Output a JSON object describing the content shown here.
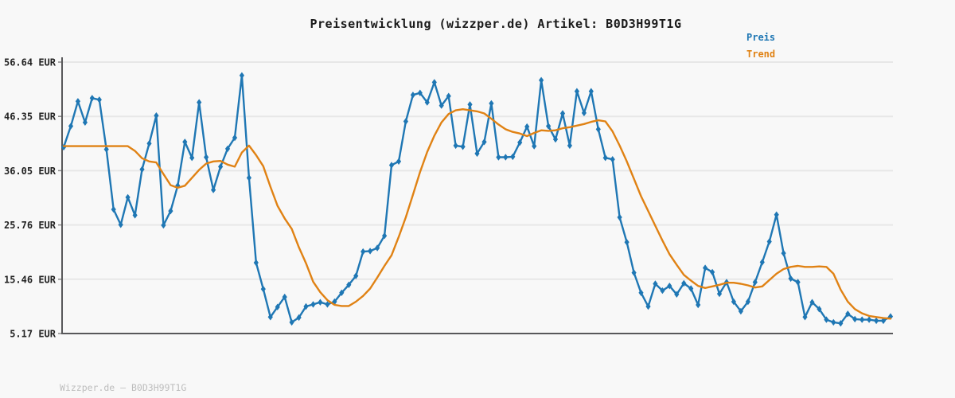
{
  "title": "Preisentwicklung (wizzper.de) Artikel: B0D3H99T1G",
  "footer": "Wizzper.de — B0D3H99T1G",
  "legend": {
    "preis": "Preis",
    "trend": "Trend"
  },
  "colors": {
    "price": "#1f77b4",
    "trend": "#e08214",
    "grid": "#e7e7e7",
    "axis": "#58585a",
    "tick": "#8a8a8a",
    "background": "#f8f8f8",
    "title_text": "#1a1a1a",
    "footer_text": "#bdbdbd"
  },
  "chart_data": {
    "type": "line",
    "title": "Preisentwicklung (wizzper.de) Artikel: B0D3H99T1G",
    "xlabel": "",
    "ylabel": "",
    "grid": true,
    "legend_position": "top-right",
    "y_axis": {
      "unit": "EUR",
      "range": [
        5.17,
        56.64
      ],
      "tick_values": [
        56.64,
        46.35,
        36.05,
        25.76,
        15.46,
        5.17
      ],
      "tick_labels": [
        "56.64 EUR",
        "46.35 EUR",
        "36.05 EUR",
        "25.76 EUR",
        "15.46 EUR",
        "5.17 EUR"
      ]
    },
    "x_axis": {
      "tick_labels": []
    },
    "series": [
      {
        "name": "Preis",
        "color": "#1f77b4",
        "markers": true,
        "values": [
          40.5,
          44.5,
          49.2,
          45.2,
          49.8,
          49.5,
          40.1,
          28.7,
          25.8,
          31,
          27.6,
          36.3,
          41.2,
          46.5,
          25.7,
          28.4,
          33.2,
          41.5,
          38.5,
          49,
          38.6,
          32.4,
          36.8,
          40.2,
          42.3,
          54.1,
          34.7,
          18.6,
          13.6,
          8.3,
          10.2,
          12.1,
          7.3,
          8.2,
          10.3,
          10.7,
          11.1,
          10.7,
          11.2,
          12.9,
          14.4,
          16.1,
          20.7,
          20.8,
          21.4,
          23.7,
          37.1,
          37.8,
          45.4,
          50.4,
          50.8,
          49,
          52.8,
          48.4,
          50.2,
          40.8,
          40.6,
          48.6,
          39.3,
          41.5,
          48.8,
          38.6,
          38.6,
          38.7,
          41.4,
          44.4,
          40.7,
          53.2,
          44.5,
          42,
          46.9,
          40.8,
          51.1,
          47,
          51.1,
          43.9,
          38.5,
          38.2,
          27.2,
          22.5,
          16.7,
          12.9,
          10.3,
          14.6,
          13.3,
          14.2,
          12.6,
          14.7,
          13.7,
          10.6,
          17.6,
          16.8,
          12.7,
          14.9,
          11.2,
          9.4,
          11.2,
          14.9,
          18.7,
          22.6,
          27.7,
          20.4,
          15.6,
          14.9,
          8.3,
          11.1,
          9.8,
          7.8,
          7.3,
          7.1,
          8.9,
          7.9,
          7.8,
          7.8,
          7.6,
          7.6,
          8.4
        ]
      },
      {
        "name": "Trend",
        "color": "#e08214",
        "markers": false,
        "values": [
          40.7,
          40.7,
          40.7,
          40.7,
          40.7,
          40.7,
          40.7,
          40.7,
          40.7,
          40.7,
          39.8,
          38.4,
          37.8,
          37.6,
          35.4,
          33.3,
          32.8,
          33.2,
          34.7,
          36.2,
          37.4,
          37.8,
          37.9,
          37.2,
          36.8,
          39.5,
          40.8,
          39,
          36.9,
          33,
          29.4,
          27,
          25,
          21.5,
          18.5,
          15,
          13,
          11.5,
          10.6,
          10.4,
          10.4,
          11.2,
          12.3,
          13.7,
          15.8,
          18,
          20,
          23.5,
          27.2,
          31.5,
          35.8,
          39.6,
          42.7,
          45.2,
          46.8,
          47.5,
          47.7,
          47.5,
          47.3,
          46.9,
          45.9,
          44.8,
          43.9,
          43.4,
          43.1,
          42.6,
          43.2,
          43.7,
          43.6,
          43.7,
          44.1,
          44.3,
          44.6,
          44.9,
          45.3,
          45.6,
          45.4,
          43.5,
          40.8,
          37.8,
          34.5,
          31.2,
          28.4,
          25.6,
          22.8,
          20.2,
          18.2,
          16.3,
          15.2,
          14.2,
          13.8,
          14.1,
          14.4,
          14.8,
          14.8,
          14.6,
          14.3,
          13.9,
          14.1,
          15.3,
          16.5,
          17.4,
          17.8,
          18,
          17.8,
          17.8,
          17.9,
          17.8,
          16.5,
          13.5,
          11.2,
          9.8,
          9,
          8.5,
          8.3,
          8.1,
          8
        ]
      }
    ]
  }
}
